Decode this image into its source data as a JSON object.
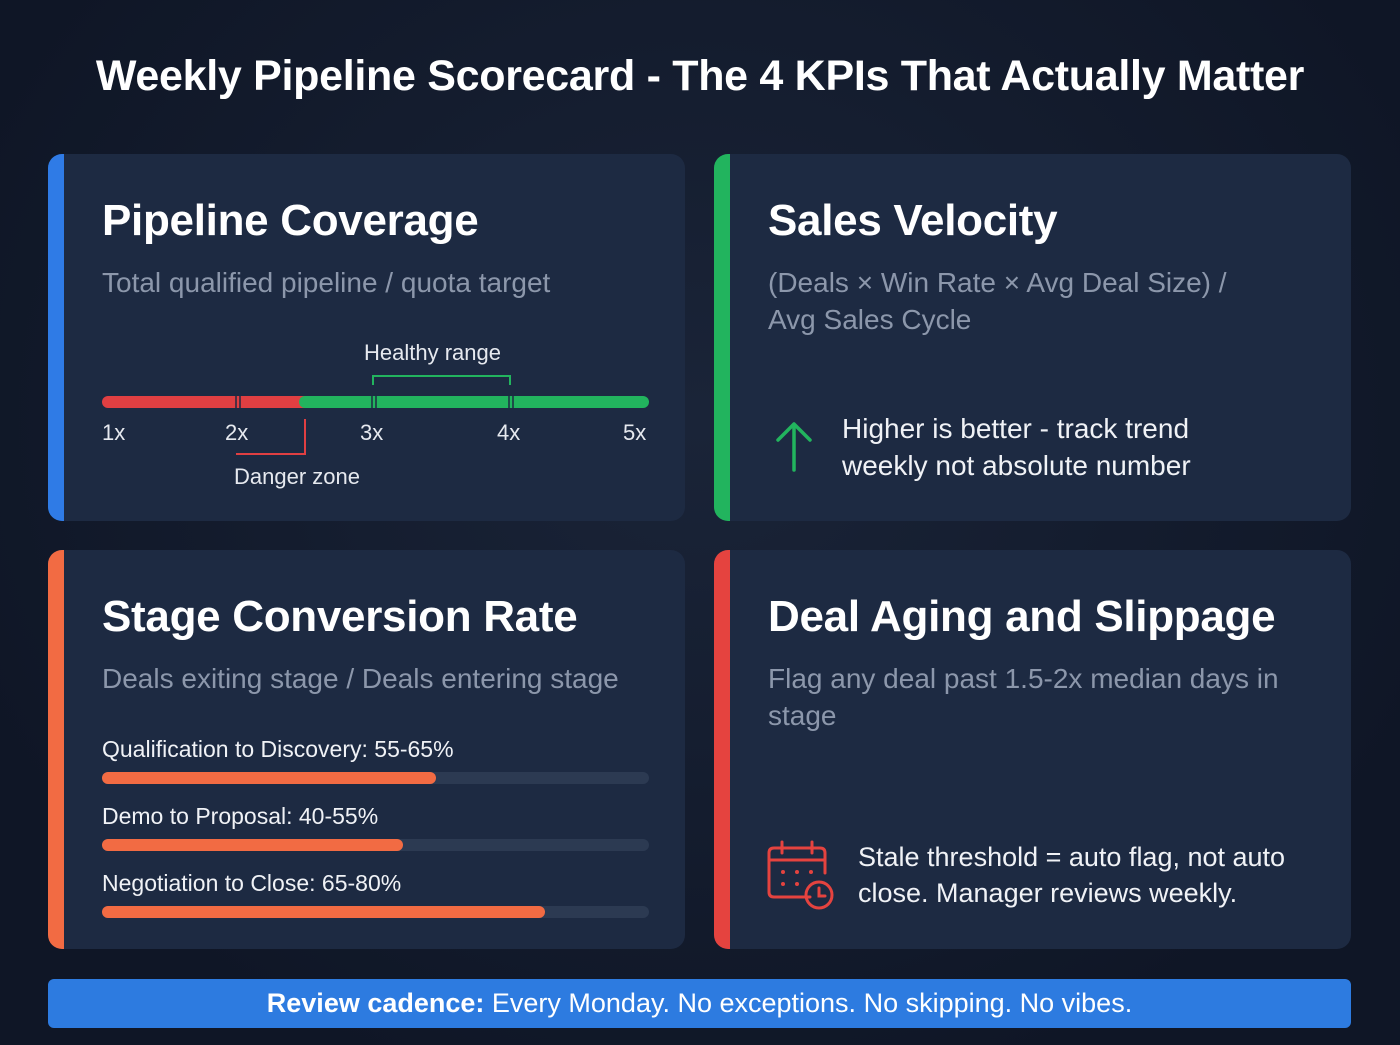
{
  "title": "Weekly Pipeline Scorecard - The 4 KPIs That Actually Matter",
  "colors": {
    "blue": "#2f7be6",
    "green": "#22b45e",
    "orange": "#f26b43",
    "red": "#e5433f",
    "bar_red": "#e03f42"
  },
  "cards": [
    {
      "title": "Pipeline Coverage",
      "subtitle": "Total qualified pipeline / quota target",
      "scale": {
        "ticks": [
          "1x",
          "2x",
          "3x",
          "4x",
          "5x"
        ],
        "danger_below": 2.5,
        "healthy_range": [
          3,
          4
        ],
        "healthy_label": "Healthy range",
        "danger_label": "Danger zone"
      }
    },
    {
      "title": "Sales Velocity",
      "subtitle": "(Deals × Win Rate × Avg Deal Size) / Avg Sales Cycle",
      "icon": "arrow-up-icon",
      "note": "Higher is better - track trend weekly not absolute number"
    },
    {
      "title": "Stage Conversion Rate",
      "subtitle": "Deals exiting stage / Deals entering stage",
      "stages": [
        {
          "label": "Qualification to Discovery: 55-65%",
          "fill": 0.61
        },
        {
          "label": "Demo to Proposal: 40-55%",
          "fill": 0.55
        },
        {
          "label": "Negotiation to Close: 65-80%",
          "fill": 0.81
        }
      ]
    },
    {
      "title": "Deal Aging and Slippage",
      "subtitle": "Flag any deal past 1.5-2x median days in stage",
      "icon": "calendar-clock-icon",
      "note": "Stale threshold = auto flag, not auto close. Manager reviews weekly."
    }
  ],
  "banner": {
    "bold": "Review cadence:",
    "text": " Every Monday. No exceptions. No skipping. No vibes."
  }
}
